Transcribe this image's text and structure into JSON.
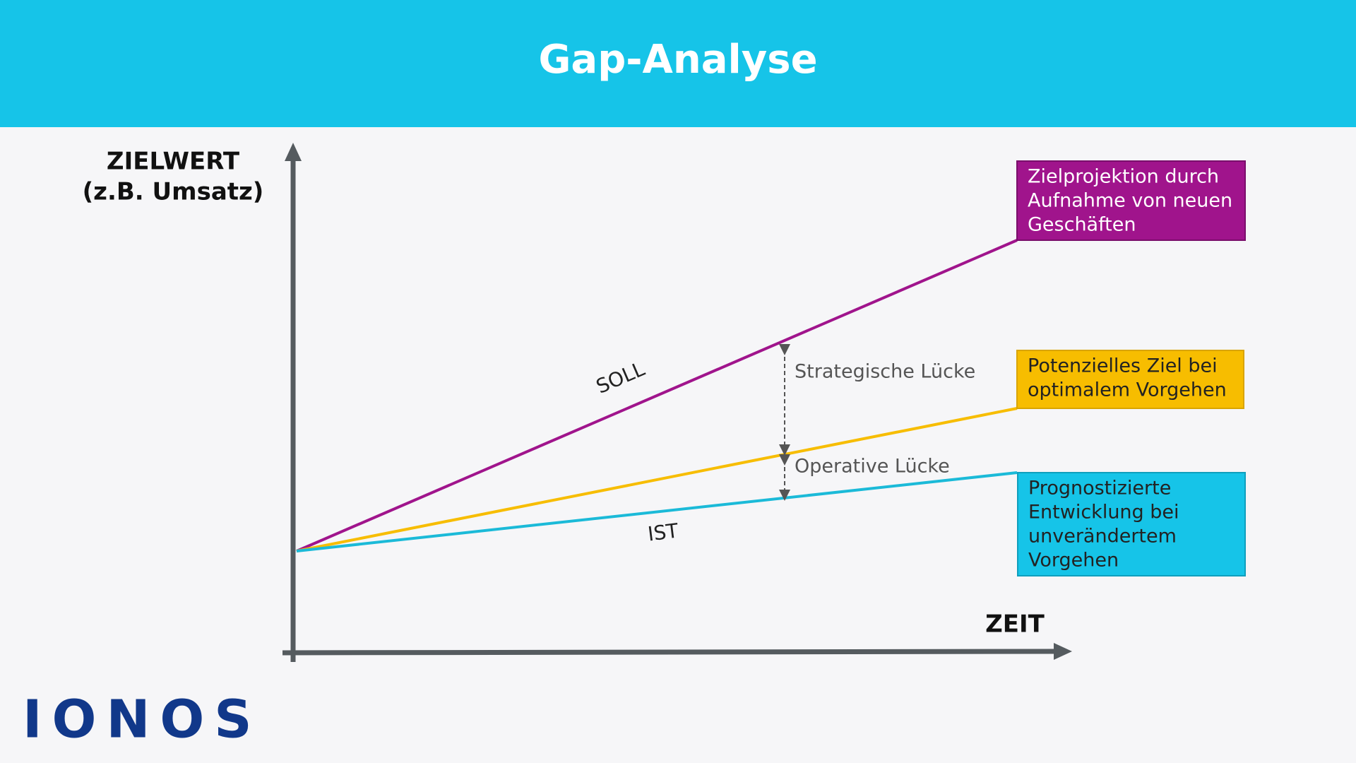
{
  "header": {
    "title": "Gap-Analyse"
  },
  "axes": {
    "y_label": [
      "ZIELWERT",
      "(z.B. Umsatz)"
    ],
    "x_label": "ZEIT"
  },
  "lines": {
    "soll": "SOLL",
    "ist": "IST"
  },
  "gaps": {
    "strategic": "Strategische Lücke",
    "operative": "Operative Lücke"
  },
  "boxes": [
    {
      "lines": [
        "Zielprojektion durch",
        "Aufnahme von neuen",
        "Geschäften"
      ]
    },
    {
      "lines": [
        "Potenzielles Ziel bei",
        "optimalem Vorgehen"
      ]
    },
    {
      "lines": [
        "Prognostizierte",
        "Entwicklung bei",
        "unverändertem",
        "Vorgehen"
      ]
    }
  ],
  "logo": "IONOS"
}
